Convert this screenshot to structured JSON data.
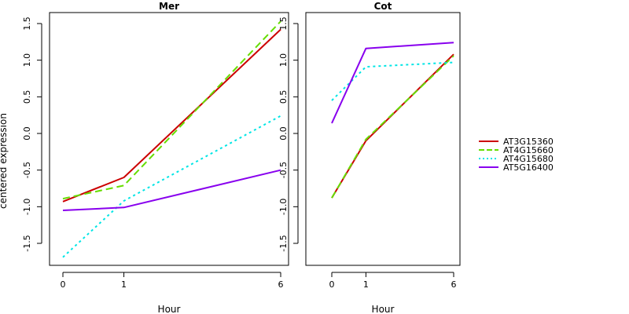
{
  "chart_data": {
    "type": "line",
    "ylabel": "centered expression",
    "legend_position": "right",
    "x_categories": [
      "0",
      "1",
      "6"
    ],
    "y_range": [
      -1.8,
      1.65
    ],
    "y_ticks": [
      -1.5,
      -1.0,
      -0.5,
      0.0,
      0.5,
      1.0,
      1.5
    ],
    "y_tick_labels": [
      "-1.5",
      "-1.0",
      "-0.5",
      "0.0",
      "0.5",
      "1.0",
      "1.5"
    ],
    "series_styles": [
      {
        "name": "AT3G15360",
        "color": "#cc0000",
        "dash": "solid"
      },
      {
        "name": "AT4G15660",
        "color": "#66dd00",
        "dash": "dashed"
      },
      {
        "name": "AT4G15680",
        "color": "#00e5e5",
        "dash": "dotted"
      },
      {
        "name": "AT5G16400",
        "color": "#8800ee",
        "dash": "solid"
      }
    ],
    "panels": [
      {
        "title": "Mer",
        "xlabel": "Hour",
        "series": [
          {
            "name": "AT3G15360",
            "values": [
              -0.93,
              -0.6,
              1.42
            ]
          },
          {
            "name": "AT4G15660",
            "values": [
              -0.89,
              -0.71,
              1.53
            ]
          },
          {
            "name": "AT4G15680",
            "values": [
              -1.69,
              -0.92,
              0.24
            ]
          },
          {
            "name": "AT5G16400",
            "values": [
              -1.05,
              -1.01,
              -0.5
            ]
          }
        ]
      },
      {
        "title": "Cot",
        "xlabel": "Hour",
        "series": [
          {
            "name": "AT3G15360",
            "values": [
              -0.88,
              -0.1,
              1.08
            ]
          },
          {
            "name": "AT4G15660",
            "values": [
              -0.88,
              -0.08,
              1.06
            ]
          },
          {
            "name": "AT4G15680",
            "values": [
              0.45,
              0.91,
              0.97
            ]
          },
          {
            "name": "AT5G16400",
            "values": [
              0.14,
              1.16,
              1.24
            ]
          }
        ]
      }
    ]
  }
}
